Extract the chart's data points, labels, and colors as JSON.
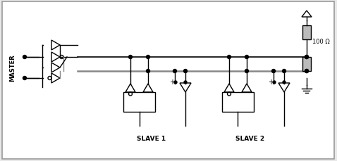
{
  "fig_width": 4.78,
  "fig_height": 2.3,
  "dpi": 100,
  "bg_color": "#e8e8e8",
  "inner_bg": "#ffffff",
  "line_color": "#000000",
  "bus_color_top": "#000000",
  "bus_color_bot": "#888888",
  "resistor_color": "#bbbbbb",
  "master_label": "MASTER",
  "slave1_label": "SLAVE 1",
  "slave2_label": "SLAVE 2",
  "ohm_label": "100 Ω"
}
